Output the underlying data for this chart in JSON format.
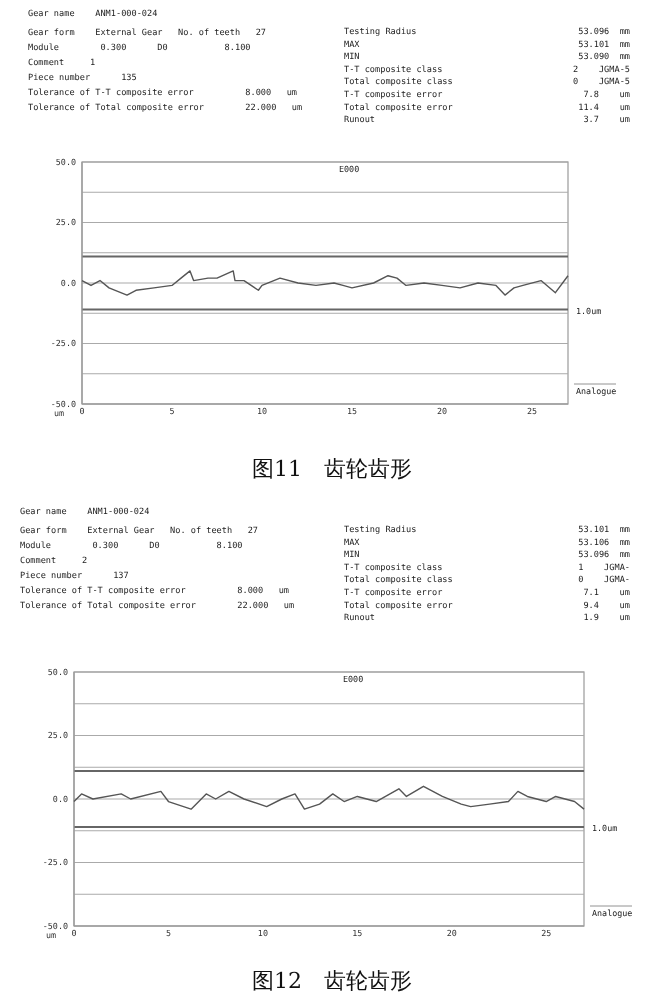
{
  "chart_data": [
    {
      "type": "line",
      "title": "图11　齿轮齿形",
      "ylabel": "um",
      "xlim": [
        0,
        27
      ],
      "xticks": [
        0,
        5,
        10,
        15,
        20,
        25
      ],
      "ylim": [
        -50,
        50
      ],
      "yticks": [
        {
          "value": -50,
          "label": "-50.0"
        },
        {
          "value": -37.5,
          "label": null
        },
        {
          "value": -25,
          "label": "-25.0"
        },
        {
          "value": -12.5,
          "label": null
        },
        {
          "value": 0,
          "label": "0.0"
        },
        {
          "value": 12.5,
          "label": null
        },
        {
          "value": 25,
          "label": "25.0"
        },
        {
          "value": 37.5,
          "label": null
        },
        {
          "value": 50,
          "label": "50.0"
        }
      ],
      "grid": "y",
      "ref_lines": [
        {
          "axis": "y",
          "value": 11
        },
        {
          "axis": "y",
          "value": -11
        }
      ],
      "annotations": [
        "Gear name    ANM1-000-024",
        "Gear form    External Gear   No. of teeth   27",
        "Module        0.300      D0           8.100",
        "Comment     1",
        "Piece number      135",
        "Tolerance of T-T composite error          8.000   um",
        "Tolerance of Total composite error        22.000   um",
        "Testing Radius",
        "MAX",
        "MIN",
        "T-T composite class",
        "Total composite class",
        "T-T composite error",
        "Total composite error",
        "Runout",
        "53.096  mm",
        "53.101  mm",
        "53.090  mm",
        "2    JGMA-5",
        "0    JGMA-5",
        "7.8    um",
        "11.4    um",
        "3.7    um",
        "E000",
        "1.0um",
        "Analogue"
      ],
      "series": [
        {
          "color": "#555555",
          "x": [
            0,
            0.5,
            1,
            1.5,
            2.5,
            3,
            4,
            5,
            5.5,
            6,
            6.2,
            7,
            7.5,
            8.4,
            8.5,
            9,
            9.8,
            10,
            11,
            12,
            13,
            14,
            14.5,
            15,
            16.2,
            17,
            17.5,
            18,
            19,
            20,
            21,
            22,
            23,
            23.5,
            24,
            24.5,
            25.5,
            26.3,
            27
          ],
          "values": [
            1,
            -1,
            1,
            -2,
            -5,
            -3,
            -2,
            -1,
            2,
            5,
            1,
            2,
            2,
            5,
            1,
            1,
            -3,
            -1,
            2,
            0,
            -1,
            0,
            -1,
            -2,
            0,
            3,
            2,
            -1,
            0,
            -1,
            -2,
            0,
            -1,
            -5,
            -2,
            -1,
            1,
            -4,
            3
          ]
        }
      ]
    },
    {
      "type": "line",
      "title": "图12　齿轮齿形",
      "ylabel": "um",
      "xlim": [
        0,
        27
      ],
      "xticks": [
        0,
        5,
        10,
        15,
        20,
        25
      ],
      "ylim": [
        -50,
        50
      ],
      "yticks": [
        {
          "value": -50,
          "label": "-50.0"
        },
        {
          "value": -37.5,
          "label": null
        },
        {
          "value": -25,
          "label": "-25.0"
        },
        {
          "value": -12.5,
          "label": null
        },
        {
          "value": 0,
          "label": "0.0"
        },
        {
          "value": 12.5,
          "label": null
        },
        {
          "value": 25,
          "label": "25.0"
        },
        {
          "value": 37.5,
          "label": null
        },
        {
          "value": 50,
          "label": "50.0"
        }
      ],
      "grid": "y",
      "ref_lines": [
        {
          "axis": "y",
          "value": 11
        },
        {
          "axis": "y",
          "value": -11
        }
      ],
      "annotations": [
        "Gear name    ANM1-000-024",
        "Gear form    External Gear   No. of teeth   27",
        "Module        0.300      D0           8.100",
        "Comment     2",
        "Piece number      137",
        "Tolerance of T-T composite error          8.000   um",
        "Tolerance of Total composite error        22.000   um",
        "Testing Radius",
        "MAX",
        "MIN",
        "T-T composite class",
        "Total composite class",
        "T-T composite error",
        "Total composite error",
        "Runout",
        "53.101  mm",
        "53.106  mm",
        "53.096  mm",
        "1    JGMA-",
        "0    JGMA-",
        "7.1    um",
        "9.4    um",
        "1.9    um",
        "E000",
        "1.0um",
        "Analogue"
      ],
      "series": [
        {
          "color": "#555555",
          "x": [
            0,
            0.4,
            1,
            2.5,
            3,
            4.6,
            5,
            6.2,
            7,
            7.5,
            8.2,
            9,
            10.2,
            11,
            11.7,
            12.2,
            13,
            13.7,
            14.3,
            15,
            16,
            17.2,
            17.6,
            18.5,
            19.5,
            20.5,
            21,
            22,
            23,
            23.5,
            24,
            25,
            25.5,
            26.5,
            27
          ],
          "values": [
            -1,
            2,
            0,
            2,
            0,
            3,
            -1,
            -4,
            2,
            0,
            3,
            0,
            -3,
            0,
            2,
            -4,
            -2,
            2,
            -1,
            1,
            -1,
            4,
            1,
            5,
            1,
            -2,
            -3,
            -2,
            -1,
            3,
            1,
            -1,
            1,
            -1,
            -4
          ]
        }
      ]
    }
  ]
}
